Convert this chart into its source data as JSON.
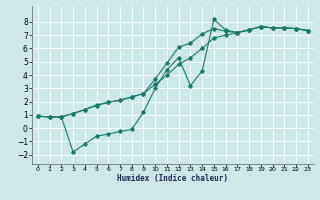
{
  "xlabel": "Humidex (Indice chaleur)",
  "bg_color": "#cce8e8",
  "grid_color": "#ffffff",
  "line_color": "#1a7a6a",
  "xlim": [
    -0.5,
    23.5
  ],
  "ylim": [
    -2.7,
    9.2
  ],
  "xticks": [
    0,
    1,
    2,
    3,
    4,
    5,
    6,
    7,
    8,
    9,
    10,
    11,
    12,
    13,
    14,
    15,
    16,
    17,
    18,
    19,
    20,
    21,
    22,
    23
  ],
  "yticks": [
    -2,
    -1,
    0,
    1,
    2,
    3,
    4,
    5,
    6,
    7,
    8
  ],
  "curve1_x": [
    0,
    1,
    2,
    3,
    4,
    5,
    6,
    7,
    8,
    9,
    10,
    11,
    12,
    13,
    14,
    15,
    16,
    17,
    18,
    19,
    20,
    21,
    22,
    23
  ],
  "curve1_y": [
    0.9,
    0.85,
    0.85,
    1.1,
    1.4,
    1.7,
    1.95,
    2.1,
    2.35,
    2.6,
    3.3,
    4.0,
    4.8,
    5.3,
    6.0,
    6.8,
    7.0,
    7.2,
    7.4,
    7.65,
    7.55,
    7.55,
    7.5,
    7.35
  ],
  "curve2_x": [
    0,
    1,
    2,
    3,
    4,
    5,
    6,
    7,
    8,
    9,
    10,
    11,
    12,
    13,
    14,
    15,
    16,
    17,
    18,
    19,
    20,
    21,
    22,
    23
  ],
  "curve2_y": [
    0.9,
    0.85,
    0.85,
    -1.8,
    -1.2,
    -0.6,
    -0.45,
    -0.25,
    -0.1,
    1.2,
    3.0,
    4.4,
    5.3,
    3.2,
    4.3,
    8.2,
    7.4,
    7.2,
    7.4,
    7.65,
    7.55,
    7.55,
    7.5,
    7.35
  ],
  "curve3_x": [
    0,
    1,
    2,
    3,
    4,
    5,
    6,
    7,
    8,
    9,
    10,
    11,
    12,
    13,
    14,
    15,
    16,
    17,
    18,
    19,
    20,
    21,
    22,
    23
  ],
  "curve3_y": [
    0.9,
    0.85,
    0.85,
    1.1,
    1.4,
    1.75,
    1.95,
    2.1,
    2.35,
    2.6,
    3.7,
    4.9,
    6.1,
    6.4,
    7.1,
    7.5,
    7.3,
    7.2,
    7.4,
    7.65,
    7.55,
    7.55,
    7.5,
    7.35
  ]
}
